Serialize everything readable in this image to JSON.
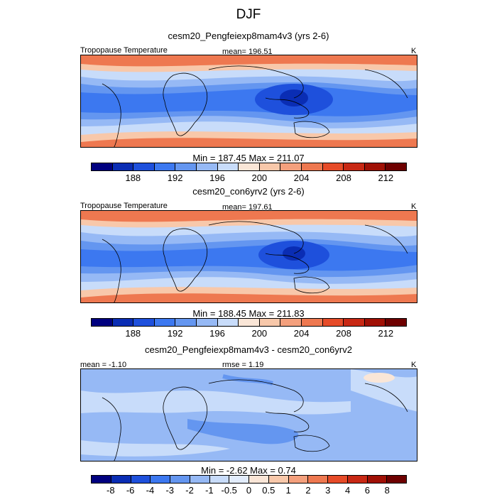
{
  "figure_title": "DJF",
  "panels": [
    {
      "subtitle": "cesm20_Pengfeiexp8mam4v3 (yrs 2-6)",
      "left_label": "Tropopause Temperature",
      "center_label": "mean= 196.51",
      "right_label": "K",
      "minmax": "Min = 187.45 Max = 211.07",
      "ticks": [
        "188",
        "192",
        "196",
        "200",
        "204",
        "208",
        "212"
      ],
      "colors": [
        "#00007f",
        "#0a2db4",
        "#1e50dc",
        "#3c78f0",
        "#6496f0",
        "#96b9f5",
        "#c8dcfa",
        "#fae6d7",
        "#f8c8aa",
        "#f4a07d",
        "#ee7850",
        "#e64b28",
        "#c82814",
        "#a01005",
        "#6e0000"
      ]
    },
    {
      "subtitle": "cesm20_con6yrv2 (yrs 2-6)",
      "left_label": "Tropopause Temperature",
      "center_label": "mean= 197.61",
      "right_label": "K",
      "minmax": "Min = 188.45 Max = 211.83",
      "ticks": [
        "188",
        "192",
        "196",
        "200",
        "204",
        "208",
        "212"
      ],
      "colors": [
        "#00007f",
        "#0a2db4",
        "#1e50dc",
        "#3c78f0",
        "#6496f0",
        "#96b9f5",
        "#c8dcfa",
        "#fae6d7",
        "#f8c8aa",
        "#f4a07d",
        "#ee7850",
        "#e64b28",
        "#c82814",
        "#a01005",
        "#6e0000"
      ]
    },
    {
      "subtitle": "cesm20_Pengfeiexp8mam4v3 - cesm20_con6yrv2",
      "left_label": "mean =  -1.10",
      "center_label": "rmse =   1.19",
      "right_label": "K",
      "minmax": "Min =  -2.62 Max =   0.74",
      "ticks": [
        "-8",
        "-6",
        "-4",
        "-3",
        "-2",
        "-1",
        "-0.5",
        "0",
        "0.5",
        "1",
        "2",
        "3",
        "4",
        "6",
        "8"
      ],
      "colors": [
        "#00007f",
        "#0a2db4",
        "#1e50dc",
        "#3c78f0",
        "#6496f0",
        "#96b9f5",
        "#c8dcfa",
        "#e2ecfc",
        "#fae6d7",
        "#f8c8aa",
        "#f4a07d",
        "#ee7850",
        "#e64b28",
        "#c82814",
        "#a01005",
        "#6e0000"
      ]
    }
  ]
}
